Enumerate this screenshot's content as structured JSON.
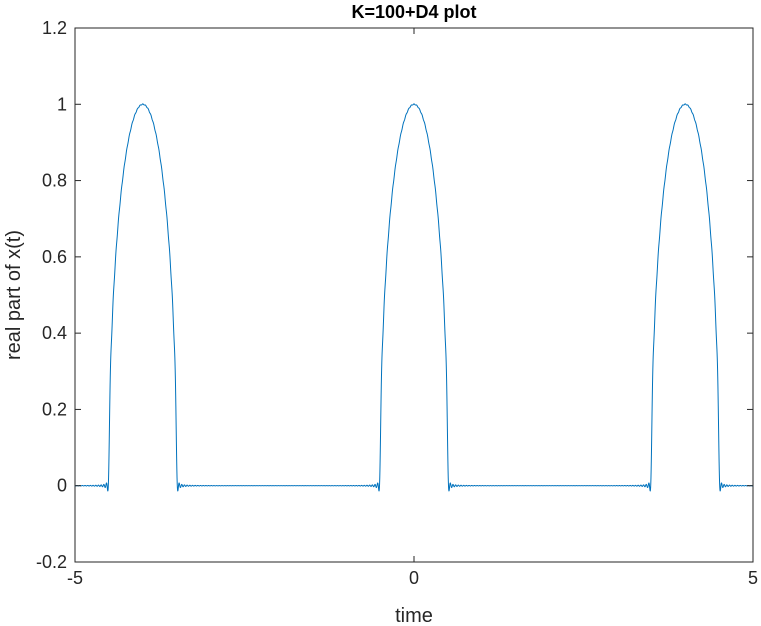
{
  "chart_data": {
    "type": "line",
    "title": "K=100+D4 plot",
    "xlabel": "time",
    "ylabel": "real part of x(t)",
    "xlim": [
      -5,
      5
    ],
    "ylim": [
      -0.2,
      1.2
    ],
    "xticks": [
      -5,
      0,
      5
    ],
    "xtick_labels": [
      "-5",
      "0",
      "5"
    ],
    "yticks": [
      -0.2,
      0,
      0.2,
      0.4,
      0.6,
      0.8,
      1,
      1.2
    ],
    "ytick_labels": [
      "-0.2",
      "0",
      "0.2",
      "0.4",
      "0.6",
      "0.8",
      "1",
      "1.2"
    ],
    "grid": false,
    "box": true,
    "line_color": "#0072BD",
    "series": [
      {
        "description_of_shape": "periodic pulse train, period 4, pulse width 1, pulse shape sqrt(1-4(t-4k)^2) with Gibbs ringing at edges",
        "period": 4,
        "pulse_centers": [
          -4,
          0,
          4
        ],
        "pulse_half_width": 0.5,
        "peak": 1.0,
        "edge_value": 0.83,
        "overshoot_min": -0.07
      }
    ]
  }
}
